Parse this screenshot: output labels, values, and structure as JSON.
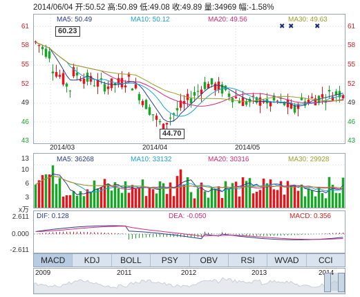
{
  "info": {
    "date": "2014/06/04",
    "open_label": "开:",
    "open": "50.52",
    "high_label": "高:",
    "high": "50.89",
    "low_label": "低:",
    "low": "49.08",
    "close_label": "收:",
    "close": "49.89",
    "volume_label": "量:",
    "volume": "34969",
    "change_label": "幅:",
    "change": "-1.58%"
  },
  "price_panel": {
    "legend": [
      {
        "label": "MA5: 50.49",
        "color": "#2a3b8f"
      },
      {
        "label": "MA10: 50.12",
        "color": "#1aa3d6"
      },
      {
        "label": "MA20: 49.56",
        "color": "#d4287a"
      },
      {
        "label": "MA30: 49.63",
        "color": "#9aa12a"
      }
    ],
    "y_ticks": [
      "61",
      "58",
      "55",
      "52",
      "49",
      "46",
      "43"
    ],
    "x_ticks": [
      "2014/03",
      "2014/04",
      "2014/05"
    ],
    "high_marker": "60.23",
    "low_marker": "44.70",
    "star_icons": [
      "star-icon",
      "star-icon",
      "star-icon"
    ],
    "colors": {
      "up": "#e4161b",
      "down": "#1aa52a",
      "axis": "#d42020"
    }
  },
  "volume_panel": {
    "legend": [
      {
        "label": "MA5: 36268",
        "color": "#2a3b8f"
      },
      {
        "label": "MA10: 33132",
        "color": "#1aa3d6"
      },
      {
        "label": "MA20: 30316",
        "color": "#d4287a"
      },
      {
        "label": "MA30: 29928",
        "color": "#9aa12a"
      }
    ],
    "y_ticks": [
      "13",
      "10",
      "6",
      "3"
    ],
    "unit": "x万"
  },
  "macd_panel": {
    "legend": [
      {
        "label": "DIF: 0.128",
        "color": "#2a3b8f"
      },
      {
        "label": "DEA: -0.050",
        "color": "#d4287a"
      },
      {
        "label": "MACD: 0.356",
        "color": "#d42020"
      }
    ],
    "y_ticks": [
      "2.611",
      "0.000",
      "-2.611"
    ]
  },
  "tabs": [
    "MACD",
    "KDJ",
    "BOLL",
    "PSY",
    "OBV",
    "RSI",
    "WVAD",
    "CCI"
  ],
  "active_tab": "MACD",
  "navigator": {
    "years": [
      "2009",
      "2011",
      "2012",
      "2013",
      "2014"
    ]
  }
}
